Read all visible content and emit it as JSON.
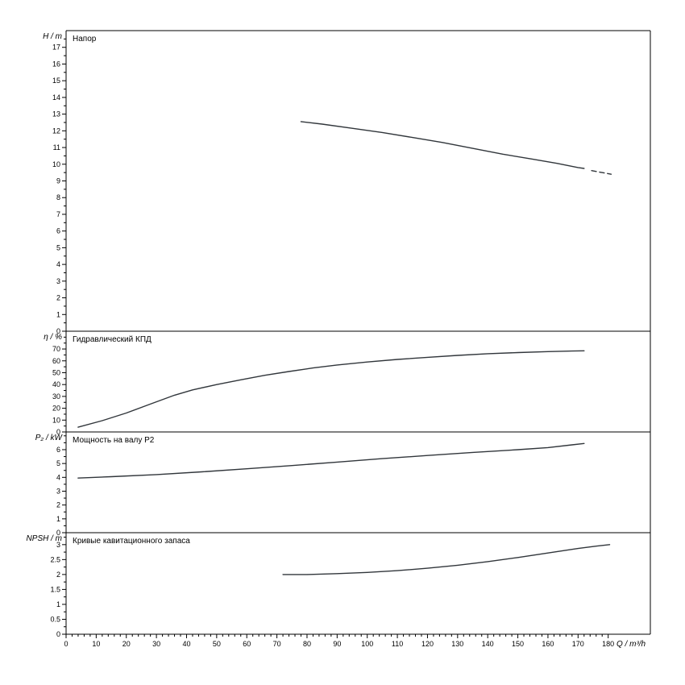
{
  "figure": {
    "background": "#ffffff",
    "axis_color": "#000000",
    "curve_color": "#31363b"
  },
  "chart_data": {
    "type": "line",
    "description": "Pump performance curves, four stacked panels sharing one flow axis",
    "shared_x_axis": {
      "label": "Q / m³/h",
      "min": 0,
      "max": 194,
      "major_ticks": [
        0,
        10,
        20,
        30,
        40,
        50,
        60,
        70,
        80,
        90,
        100,
        110,
        120,
        130,
        140,
        150,
        160,
        170,
        180
      ],
      "minor_step": 2
    },
    "charts": [
      {
        "id": "head",
        "title": "Напор",
        "y_axis_label": "H / m",
        "y_min": 0,
        "y_max": 18,
        "y_major_ticks": [
          0,
          1,
          2,
          3,
          4,
          5,
          6,
          7,
          8,
          9,
          10,
          11,
          12,
          13,
          14,
          15,
          16,
          17
        ],
        "y_minor_step": 0.5,
        "series": [
          {
            "name": "head-curve",
            "line_style": "solid",
            "points": [
              [
                78,
                12.55
              ],
              [
                85,
                12.4
              ],
              [
                95,
                12.15
              ],
              [
                105,
                11.9
              ],
              [
                115,
                11.6
              ],
              [
                125,
                11.3
              ],
              [
                135,
                10.95
              ],
              [
                145,
                10.6
              ],
              [
                155,
                10.3
              ],
              [
                163,
                10.05
              ],
              [
                170,
                9.8
              ],
              [
                172,
                9.75
              ]
            ]
          },
          {
            "name": "head-curve-extrapolated",
            "line_style": "dashed",
            "points": [
              [
                174.5,
                9.62
              ],
              [
                181,
                9.4
              ]
            ]
          }
        ]
      },
      {
        "id": "efficiency",
        "title": "Гидравлический КПД",
        "y_axis_label": "η / %",
        "y_min": 0,
        "y_max": 85,
        "y_major_ticks": [
          0,
          10,
          20,
          30,
          40,
          50,
          60,
          70
        ],
        "y_minor_step": 5,
        "series": [
          {
            "name": "efficiency-curve",
            "line_style": "solid",
            "points": [
              [
                4,
                4
              ],
              [
                12,
                9.5
              ],
              [
                20,
                16
              ],
              [
                28,
                23.5
              ],
              [
                36,
                31
              ],
              [
                42,
                35.5
              ],
              [
                50,
                40
              ],
              [
                58,
                44
              ],
              [
                66,
                47.8
              ],
              [
                74,
                51
              ],
              [
                82,
                54
              ],
              [
                90,
                56.5
              ],
              [
                100,
                59
              ],
              [
                110,
                61.2
              ],
              [
                120,
                63
              ],
              [
                130,
                64.6
              ],
              [
                140,
                66
              ],
              [
                150,
                67
              ],
              [
                160,
                67.8
              ],
              [
                168,
                68.3
              ],
              [
                172,
                68.5
              ]
            ]
          }
        ]
      },
      {
        "id": "power",
        "title": "Мощность на валу P2",
        "y_axis_label": "P₂ / kW",
        "y_min": 0,
        "y_max": 7.28,
        "y_major_ticks": [
          0,
          1,
          2,
          3,
          4,
          5,
          6
        ],
        "y_minor_step": 0.5,
        "series": [
          {
            "name": "shaft-power-curve",
            "line_style": "solid",
            "points": [
              [
                4,
                3.95
              ],
              [
                15,
                4.05
              ],
              [
                30,
                4.2
              ],
              [
                45,
                4.4
              ],
              [
                60,
                4.62
              ],
              [
                75,
                4.85
              ],
              [
                90,
                5.1
              ],
              [
                105,
                5.35
              ],
              [
                120,
                5.58
              ],
              [
                135,
                5.8
              ],
              [
                150,
                6.0
              ],
              [
                160,
                6.15
              ],
              [
                168,
                6.35
              ],
              [
                172,
                6.45
              ]
            ]
          }
        ]
      },
      {
        "id": "npsh",
        "title": "Кривые кавитационного запаса",
        "y_axis_label": "NPSH / m",
        "y_min": 0,
        "y_max": 3.4,
        "y_major_ticks": [
          0,
          0.5,
          1,
          1.5,
          2,
          2.5,
          3
        ],
        "y_minor_step": 0.25,
        "series": [
          {
            "name": "npsh-curve",
            "line_style": "solid",
            "points": [
              [
                72,
                2.0
              ],
              [
                80,
                2.0
              ],
              [
                90,
                2.03
              ],
              [
                100,
                2.07
              ],
              [
                110,
                2.13
              ],
              [
                120,
                2.21
              ],
              [
                130,
                2.31
              ],
              [
                140,
                2.43
              ],
              [
                150,
                2.57
              ],
              [
                160,
                2.72
              ],
              [
                170,
                2.87
              ],
              [
                176,
                2.95
              ],
              [
                180.5,
                3.0
              ]
            ]
          }
        ]
      }
    ]
  }
}
